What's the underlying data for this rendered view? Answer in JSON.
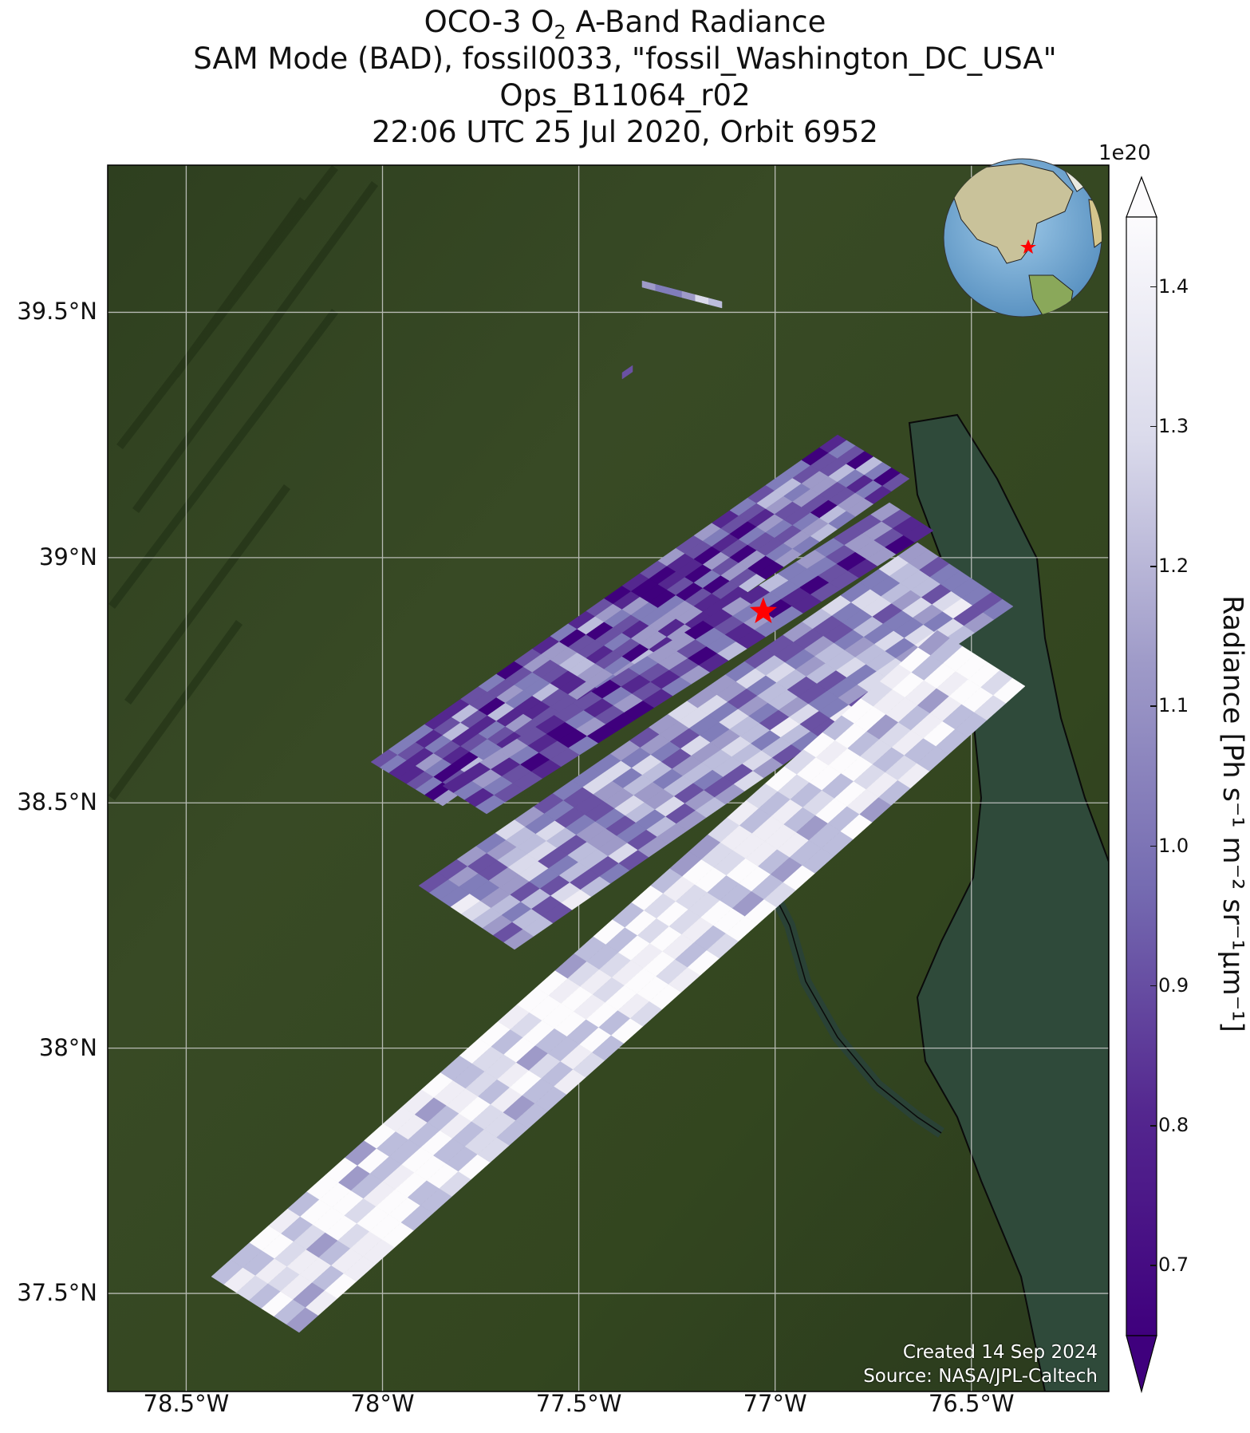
{
  "title": {
    "line1_prefix": "OCO-3 O",
    "line1_sub": "2",
    "line1_suffix": " A-Band Radiance",
    "line2": "SAM Mode (BAD), fossil0033, \"fossil_Washington_DC_USA\"",
    "line3": "Ops_B11064_r02",
    "line4": "22:06 UTC 25 Jul 2020, Orbit 6952"
  },
  "map": {
    "lon_range": [
      -78.7,
      -76.15
    ],
    "lat_range": [
      37.3,
      39.8
    ],
    "lon_ticks": [
      {
        "value": -78.5,
        "label": "78.5°W"
      },
      {
        "value": -78.0,
        "label": "78°W"
      },
      {
        "value": -77.5,
        "label": "77.5°W"
      },
      {
        "value": -77.0,
        "label": "77°W"
      },
      {
        "value": -76.5,
        "label": "76.5°W"
      }
    ],
    "lat_ticks": [
      {
        "value": 39.5,
        "label": "39.5°N"
      },
      {
        "value": 39.0,
        "label": "39°N"
      },
      {
        "value": 38.5,
        "label": "38.5°N"
      },
      {
        "value": 38.0,
        "label": "38°N"
      },
      {
        "value": 37.5,
        "label": "37.5°N"
      }
    ],
    "gridlines": true,
    "basemap": "satellite imagery",
    "target_marker": {
      "lon": -77.03,
      "lat": 38.89,
      "symbol": "star",
      "color": "#ff0000"
    },
    "inset_globe": {
      "position": "top-right",
      "marker": "star",
      "marker_color": "#ff0000"
    }
  },
  "colorbar": {
    "label": "Radiance [Ph s⁻¹ m⁻² sr⁻¹μm⁻¹]",
    "exponent": "1e20",
    "range": [
      0.65,
      1.45
    ],
    "ticks": [
      "0.7",
      "0.8",
      "0.9",
      "1.0",
      "1.1",
      "1.2",
      "1.3",
      "1.4"
    ],
    "extend": "both",
    "colormap": "Purples_r",
    "color_low": "#3f007d",
    "color_high": "#fcfbfd"
  },
  "credits": {
    "created": "Created 14 Sep 2024",
    "source": "Source: NASA/JPL-Caltech"
  }
}
